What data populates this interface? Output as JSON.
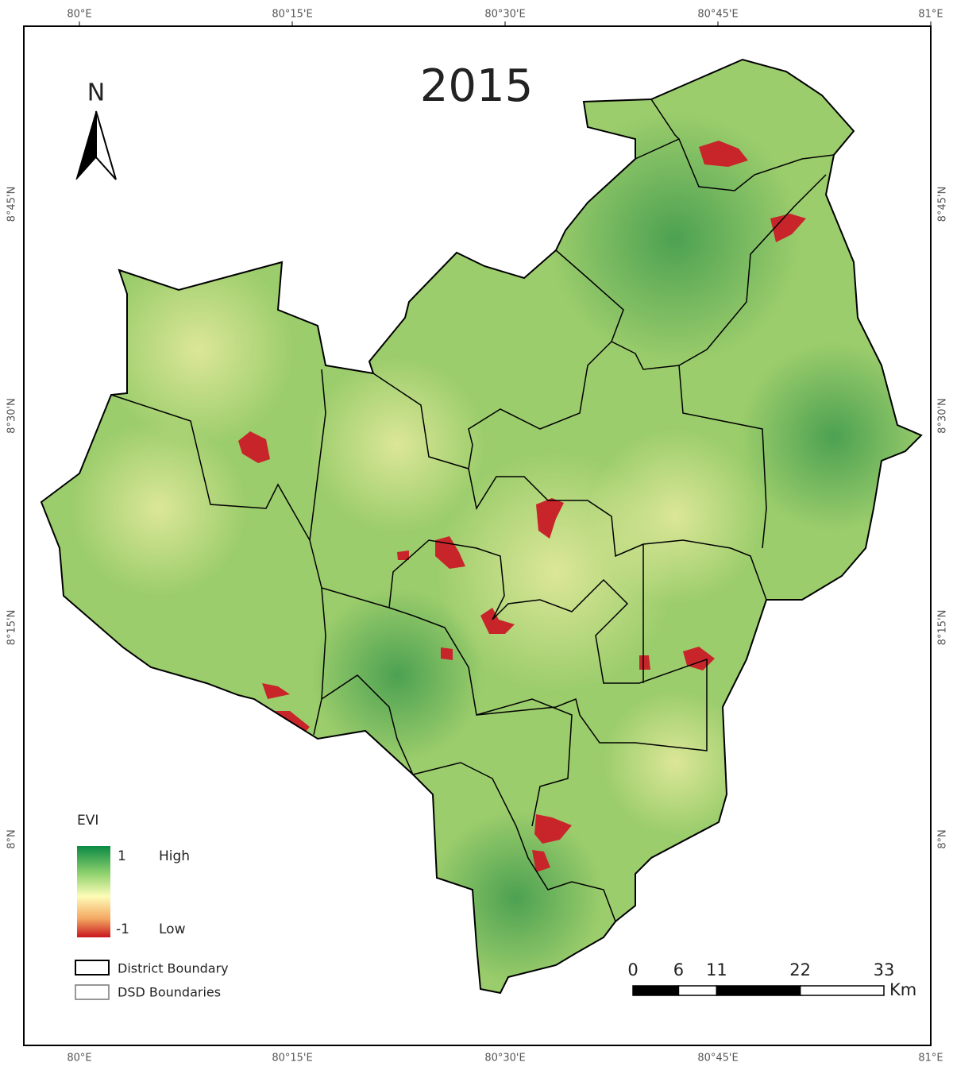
{
  "title": "2015",
  "north_arrow": "N",
  "lon_labels": [
    "80°E",
    "80°15'E",
    "80°30'E",
    "80°45'E",
    "81°E"
  ],
  "lat_labels": [
    "8°45'N",
    "8°30'N",
    "8°15'N",
    "8°N"
  ],
  "legend": {
    "title": "EVI",
    "max": "1",
    "max_label": "High",
    "min": "-1",
    "min_label": "Low",
    "items": [
      "District Boundary",
      "DSD Boundaries"
    ]
  },
  "scale_bar": {
    "ticks": [
      0,
      6,
      11,
      22,
      33
    ],
    "unit": "Km"
  }
}
